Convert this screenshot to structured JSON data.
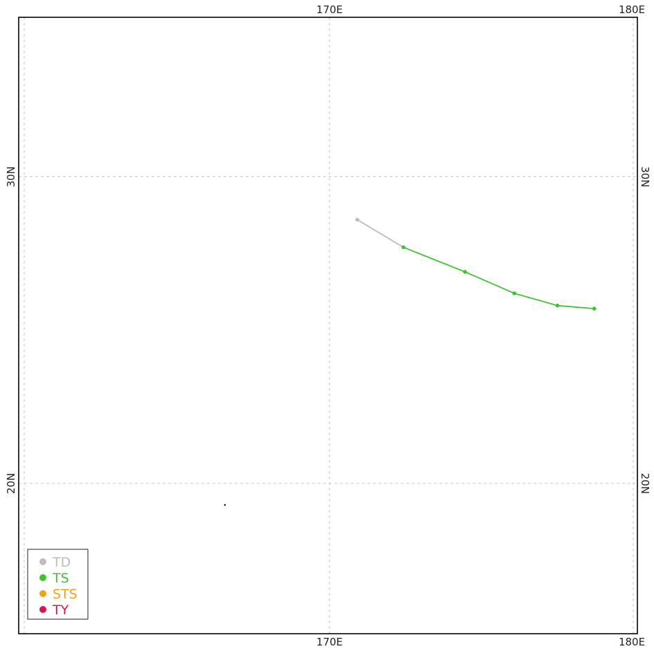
{
  "map": {
    "lon_ticks": [
      {
        "value": 170,
        "label": "170E"
      },
      {
        "value": 180,
        "label": "180E"
      }
    ],
    "lat_ticks": [
      {
        "value": 30,
        "label": "30N"
      },
      {
        "value": 20,
        "label": "20N"
      }
    ],
    "lon_range": [
      159.9,
      180.0
    ],
    "lat_range": [
      15.1,
      35.2
    ],
    "grid": true
  },
  "colors": {
    "TD": "#bdbdbd",
    "TS": "#3cc42f",
    "STS": "#f0a21e",
    "TY": "#e0114a"
  },
  "legend": {
    "placement": "bottom-left",
    "items": [
      {
        "key": "TD",
        "label": "TD"
      },
      {
        "key": "TS",
        "label": "TS"
      },
      {
        "key": "STS",
        "label": "STS"
      },
      {
        "key": "TY",
        "label": "TY"
      }
    ]
  },
  "track": [
    {
      "lon": 170.9,
      "lat": 28.6,
      "cat": "TD"
    },
    {
      "lon": 172.4,
      "lat": 27.7,
      "cat": "TS"
    },
    {
      "lon": 174.4,
      "lat": 26.9,
      "cat": "TS"
    },
    {
      "lon": 176.0,
      "lat": 26.2,
      "cat": "TS"
    },
    {
      "lon": 177.4,
      "lat": 25.8,
      "cat": "TS"
    },
    {
      "lon": 178.6,
      "lat": 25.7,
      "cat": "TS"
    }
  ],
  "markers": [
    {
      "lon": 166.6,
      "lat": 19.3
    }
  ]
}
